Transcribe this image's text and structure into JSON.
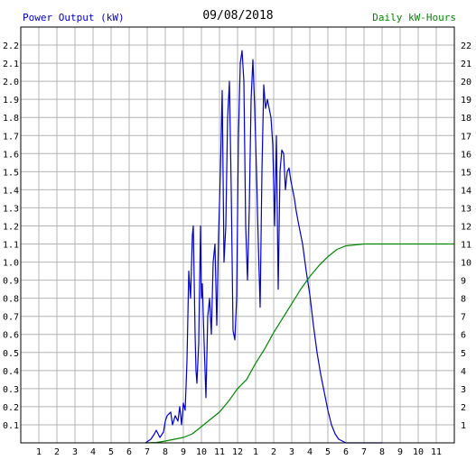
{
  "header": {
    "left_title": "Power Output (kW)",
    "date": "09/08/2018",
    "right_title": "Daily kW-Hours"
  },
  "colors": {
    "power": "#0000cc",
    "energy": "#008800",
    "grid": "#b4b4b4",
    "frame": "#000000"
  },
  "chart_data": {
    "type": "line",
    "xlabel": "",
    "ylabel": "",
    "grid": true,
    "xlim": [
      0,
      24
    ],
    "x_tick_labels": [
      "1",
      "2",
      "3",
      "4",
      "5",
      "6",
      "7",
      "8",
      "9",
      "10",
      "11",
      "12",
      "1",
      "2",
      "3",
      "4",
      "5",
      "6",
      "7",
      "8",
      "9",
      "10",
      "11"
    ],
    "y_left": {
      "ylim": [
        0,
        2.3
      ],
      "ticks": [
        "0.1",
        "0.2",
        "0.3",
        "0.4",
        "0.5",
        "0.6",
        "0.7",
        "0.8",
        "0.9",
        "1.0",
        "1.1",
        "1.2",
        "1.3",
        "1.4",
        "1.5",
        "1.6",
        "1.7",
        "1.8",
        "1.9",
        "2.0",
        "2.1",
        "2.2"
      ]
    },
    "y_right": {
      "ylim": [
        0,
        23
      ],
      "ticks": [
        "1",
        "2",
        "3",
        "4",
        "5",
        "6",
        "7",
        "8",
        "9",
        "10",
        "11",
        "12",
        "13",
        "14",
        "15",
        "16",
        "17",
        "18",
        "19",
        "20",
        "21",
        "22"
      ]
    },
    "series": [
      {
        "axis": "left",
        "x": [
          6.9,
          7.2,
          7.4,
          7.5,
          7.7,
          7.9,
          8.0,
          8.1,
          8.2,
          8.3,
          8.4,
          8.55,
          8.7,
          8.8,
          8.9,
          9.0,
          9.1,
          9.2,
          9.3,
          9.4,
          9.5,
          9.55,
          9.65,
          9.7,
          9.75,
          9.85,
          9.95,
          10.0,
          10.05,
          10.15,
          10.25,
          10.35,
          10.45,
          10.55,
          10.65,
          10.75,
          10.85,
          10.95,
          11.05,
          11.15,
          11.25,
          11.35,
          11.45,
          11.55,
          11.65,
          11.75,
          11.85,
          11.95,
          12.05,
          12.15,
          12.25,
          12.35,
          12.45,
          12.55,
          12.65,
          12.75,
          12.85,
          12.95,
          13.05,
          13.15,
          13.25,
          13.35,
          13.45,
          13.55,
          13.65,
          13.75,
          13.85,
          13.95,
          14.05,
          14.15,
          14.25,
          14.35,
          14.45,
          14.55,
          14.65,
          14.75,
          14.85,
          14.95,
          15.05,
          15.15,
          15.25,
          15.4,
          15.6,
          15.8,
          16.0,
          16.2,
          16.4,
          16.6,
          16.8,
          17.0,
          17.2,
          17.4,
          17.6,
          17.8,
          18.0,
          18.2,
          18.4,
          18.6,
          18.8,
          19.0,
          19.2,
          19.4,
          19.6,
          19.8,
          20.0
        ],
        "values": [
          0.0,
          0.02,
          0.05,
          0.07,
          0.03,
          0.06,
          0.12,
          0.15,
          0.16,
          0.17,
          0.1,
          0.15,
          0.12,
          0.2,
          0.1,
          0.22,
          0.18,
          0.45,
          0.95,
          0.8,
          1.15,
          1.2,
          0.6,
          0.4,
          0.33,
          0.55,
          1.2,
          0.8,
          0.88,
          0.55,
          0.25,
          0.7,
          0.8,
          0.6,
          1.0,
          1.1,
          0.65,
          1.15,
          1.5,
          1.95,
          1.0,
          1.2,
          1.8,
          2.0,
          1.4,
          0.62,
          0.57,
          0.8,
          1.7,
          2.1,
          2.17,
          2.0,
          1.2,
          0.9,
          1.3,
          1.9,
          2.12,
          1.85,
          1.5,
          1.1,
          0.75,
          1.5,
          1.98,
          1.85,
          1.9,
          1.85,
          1.8,
          1.65,
          1.2,
          1.7,
          0.85,
          1.5,
          1.62,
          1.6,
          1.4,
          1.5,
          1.52,
          1.45,
          1.4,
          1.35,
          1.28,
          1.2,
          1.1,
          0.95,
          0.82,
          0.65,
          0.5,
          0.38,
          0.28,
          0.18,
          0.1,
          0.05,
          0.02,
          0.01,
          0.0,
          0.0,
          0.0,
          0.0,
          0.0,
          0.0,
          0.0,
          0.0,
          0.0,
          0.0,
          0.0
        ]
      },
      {
        "axis": "right",
        "x": [
          6.9,
          7.5,
          8.0,
          8.5,
          9.0,
          9.5,
          10.0,
          10.5,
          11.0,
          11.5,
          12.0,
          12.5,
          13.0,
          13.5,
          14.0,
          14.5,
          15.0,
          15.5,
          16.0,
          16.5,
          17.0,
          17.5,
          18.0,
          18.5,
          19.0,
          19.5,
          20.0,
          21.0,
          22.0,
          23.0,
          24.0
        ],
        "values": [
          0.0,
          0.02,
          0.1,
          0.2,
          0.3,
          0.5,
          0.9,
          1.3,
          1.7,
          2.3,
          3.0,
          3.5,
          4.4,
          5.2,
          6.1,
          6.9,
          7.7,
          8.5,
          9.2,
          9.8,
          10.3,
          10.7,
          10.9,
          10.95,
          11.0,
          11.0,
          11.0,
          11.0,
          11.0,
          11.0,
          11.0
        ]
      }
    ]
  }
}
